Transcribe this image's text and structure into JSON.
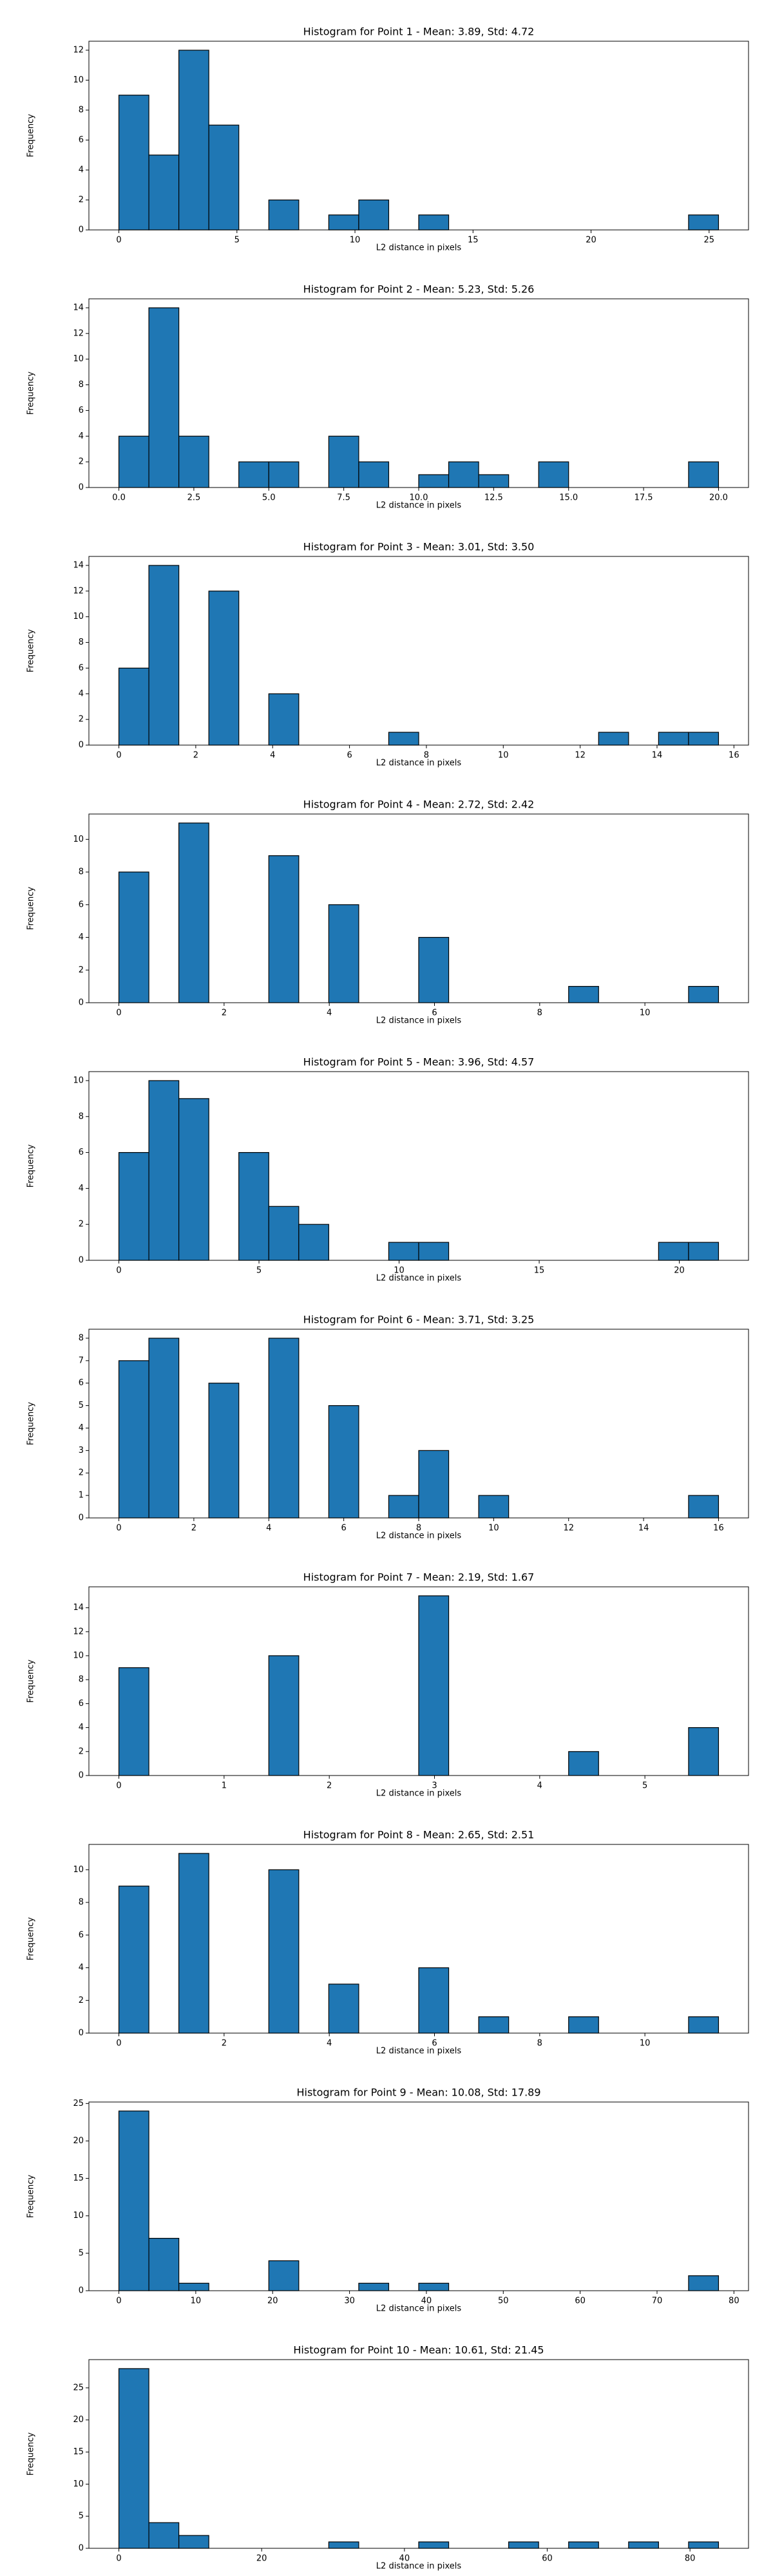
{
  "chart_data": [
    {
      "type": "histogram",
      "title": "Histogram for Point 1 - Mean: 3.89, Std: 4.72",
      "x_label": "L2 distance in pixels",
      "y_label": "Frequency",
      "color": "#1f77b4",
      "bins": [
        0,
        1.27,
        2.54,
        3.81,
        5.08,
        6.35,
        7.62,
        8.89,
        10.16,
        11.43,
        12.7,
        13.97,
        15.24,
        16.51,
        17.78,
        19.05,
        20.32,
        21.59,
        22.86,
        24.13,
        25.4
      ],
      "values": [
        9,
        5,
        12,
        7,
        0,
        2,
        0,
        1,
        2,
        0,
        1,
        0,
        0,
        0,
        0,
        0,
        0,
        0,
        0,
        1
      ],
      "xlim": [
        -1.27,
        26.67
      ],
      "ylim": [
        0,
        12.6
      ],
      "xticks": [
        0,
        5,
        10,
        15,
        20,
        25
      ],
      "yticks": [
        0,
        2,
        4,
        6,
        8,
        10,
        12
      ]
    },
    {
      "type": "histogram",
      "title": "Histogram for Point 2 - Mean: 5.23, Std: 5.26",
      "x_label": "L2 distance in pixels",
      "y_label": "Frequency",
      "color": "#1f77b4",
      "bins": [
        0,
        1,
        2,
        3,
        4,
        5,
        6,
        7,
        8,
        9,
        10,
        11,
        12,
        13,
        14,
        15,
        16,
        17,
        18,
        19,
        20
      ],
      "values": [
        4,
        14,
        4,
        0,
        2,
        2,
        0,
        4,
        2,
        0,
        1,
        2,
        1,
        0,
        2,
        0,
        0,
        0,
        0,
        2
      ],
      "xlim": [
        -1,
        21
      ],
      "ylim": [
        0,
        14.7
      ],
      "xticks": [
        {
          "value": 0,
          "label": "0.0"
        },
        2.5,
        {
          "value": 5,
          "label": "5.0"
        },
        7.5,
        {
          "value": 10,
          "label": "10.0"
        },
        12.5,
        {
          "value": 15,
          "label": "15.0"
        },
        17.5,
        {
          "value": 20,
          "label": "20.0"
        }
      ],
      "yticks": [
        0,
        2,
        4,
        6,
        8,
        10,
        12,
        14
      ]
    },
    {
      "type": "histogram",
      "title": "Histogram for Point 3 - Mean: 3.01, Std: 3.50",
      "x_label": "L2 distance in pixels",
      "y_label": "Frequency",
      "color": "#1f77b4",
      "bins": [
        0,
        0.78,
        1.56,
        2.34,
        3.12,
        3.9,
        4.68,
        5.46,
        6.24,
        7.02,
        7.8,
        8.58,
        9.36,
        10.14,
        10.92,
        11.7,
        12.48,
        13.26,
        14.04,
        14.82,
        15.6
      ],
      "values": [
        6,
        14,
        0,
        12,
        0,
        4,
        0,
        0,
        0,
        1,
        0,
        0,
        0,
        0,
        0,
        0,
        1,
        0,
        1,
        1
      ],
      "xlim": [
        -0.78,
        16.38
      ],
      "ylim": [
        0,
        14.7
      ],
      "xticks": [
        0,
        2,
        4,
        6,
        8,
        10,
        12,
        14,
        16
      ],
      "yticks": [
        0,
        2,
        4,
        6,
        8,
        10,
        12,
        14
      ]
    },
    {
      "type": "histogram",
      "title": "Histogram for Point 4 - Mean: 2.72, Std: 2.42",
      "x_label": "L2 distance in pixels",
      "y_label": "Frequency",
      "color": "#1f77b4",
      "bins": [
        0,
        0.57,
        1.14,
        1.71,
        2.28,
        2.85,
        3.42,
        3.99,
        4.56,
        5.13,
        5.7,
        6.27,
        6.84,
        7.41,
        7.98,
        8.55,
        9.12,
        9.69,
        10.26,
        10.83,
        11.4
      ],
      "values": [
        8,
        0,
        11,
        0,
        0,
        9,
        0,
        6,
        0,
        0,
        4,
        0,
        0,
        0,
        0,
        1,
        0,
        0,
        0,
        1
      ],
      "xlim": [
        -0.57,
        11.97
      ],
      "ylim": [
        0,
        11.55
      ],
      "xticks": [
        0,
        2,
        4,
        6,
        8,
        10
      ],
      "yticks": [
        0,
        2,
        4,
        6,
        8,
        10
      ]
    },
    {
      "type": "histogram",
      "title": "Histogram for Point 5 - Mean: 3.96, Std: 4.57",
      "x_label": "L2 distance in pixels",
      "y_label": "Frequency",
      "color": "#1f77b4",
      "bins": [
        0,
        1.07,
        2.14,
        3.21,
        4.28,
        5.35,
        6.42,
        7.49,
        8.56,
        9.63,
        10.7,
        11.77,
        12.84,
        13.91,
        14.98,
        16.05,
        17.12,
        18.19,
        19.26,
        20.33,
        21.4
      ],
      "values": [
        6,
        10,
        9,
        0,
        6,
        3,
        2,
        0,
        0,
        1,
        1,
        0,
        0,
        0,
        0,
        0,
        0,
        0,
        1,
        1
      ],
      "xlim": [
        -1.07,
        22.47
      ],
      "ylim": [
        0,
        10.5
      ],
      "xticks": [
        0,
        5,
        10,
        15,
        20
      ],
      "yticks": [
        0,
        2,
        4,
        6,
        8,
        10
      ]
    },
    {
      "type": "histogram",
      "title": "Histogram for Point 6 - Mean: 3.71, Std: 3.25",
      "x_label": "L2 distance in pixels",
      "y_label": "Frequency",
      "color": "#1f77b4",
      "bins": [
        0,
        0.8,
        1.6,
        2.4,
        3.2,
        4,
        4.8,
        5.6,
        6.4,
        7.2,
        8,
        8.8,
        9.6,
        10.4,
        11.2,
        12,
        12.8,
        13.6,
        14.4,
        15.2,
        16
      ],
      "values": [
        7,
        8,
        0,
        6,
        0,
        8,
        0,
        5,
        0,
        1,
        3,
        0,
        1,
        0,
        0,
        0,
        0,
        0,
        0,
        1
      ],
      "xlim": [
        -0.8,
        16.8
      ],
      "ylim": [
        0,
        8.4
      ],
      "xticks": [
        0,
        2,
        4,
        6,
        8,
        10,
        12,
        14,
        16
      ],
      "yticks": [
        0,
        1,
        2,
        3,
        4,
        5,
        6,
        7,
        8
      ]
    },
    {
      "type": "histogram",
      "title": "Histogram for Point 7 - Mean: 2.19, Std: 1.67",
      "x_label": "L2 distance in pixels",
      "y_label": "Frequency",
      "color": "#1f77b4",
      "bins": [
        0,
        0.285,
        0.57,
        0.855,
        1.14,
        1.425,
        1.71,
        1.995,
        2.28,
        2.565,
        2.85,
        3.135,
        3.42,
        3.705,
        3.99,
        4.275,
        4.56,
        4.845,
        5.13,
        5.415,
        5.7
      ],
      "values": [
        9,
        0,
        0,
        0,
        0,
        10,
        0,
        0,
        0,
        0,
        15,
        0,
        0,
        0,
        0,
        2,
        0,
        0,
        0,
        4
      ],
      "xlim": [
        -0.285,
        5.985
      ],
      "ylim": [
        0,
        15.75
      ],
      "xticks": [
        0,
        1,
        2,
        3,
        4,
        5
      ],
      "yticks": [
        0,
        2,
        4,
        6,
        8,
        10,
        12,
        14
      ]
    },
    {
      "type": "histogram",
      "title": "Histogram for Point 8 - Mean: 2.65, Std: 2.51",
      "x_label": "L2 distance in pixels",
      "y_label": "Frequency",
      "color": "#1f77b4",
      "bins": [
        0,
        0.57,
        1.14,
        1.71,
        2.28,
        2.85,
        3.42,
        3.99,
        4.56,
        5.13,
        5.7,
        6.27,
        6.84,
        7.41,
        7.98,
        8.55,
        9.12,
        9.69,
        10.26,
        10.83,
        11.4
      ],
      "values": [
        9,
        0,
        11,
        0,
        0,
        10,
        0,
        3,
        0,
        0,
        4,
        0,
        1,
        0,
        0,
        1,
        0,
        0,
        0,
        1
      ],
      "xlim": [
        -0.57,
        11.97
      ],
      "ylim": [
        0,
        11.55
      ],
      "xticks": [
        0,
        2,
        4,
        6,
        8,
        10
      ],
      "yticks": [
        0,
        2,
        4,
        6,
        8,
        10
      ]
    },
    {
      "type": "histogram",
      "title": "Histogram for Point 9 - Mean: 10.08, Std: 17.89",
      "x_label": "L2 distance in pixels",
      "y_label": "Frequency",
      "color": "#1f77b4",
      "bins": [
        0,
        3.9,
        7.8,
        11.7,
        15.6,
        19.5,
        23.4,
        27.3,
        31.2,
        35.1,
        39,
        42.9,
        46.8,
        50.7,
        54.6,
        58.5,
        62.4,
        66.3,
        70.2,
        74.1,
        78
      ],
      "values": [
        24,
        7,
        1,
        0,
        0,
        4,
        0,
        0,
        1,
        0,
        1,
        0,
        0,
        0,
        0,
        0,
        0,
        0,
        0,
        2
      ],
      "xlim": [
        -3.9,
        81.9
      ],
      "ylim": [
        0,
        25.2
      ],
      "xticks": [
        0,
        10,
        20,
        30,
        40,
        50,
        60,
        70,
        80
      ],
      "yticks": [
        0,
        5,
        10,
        15,
        20,
        25
      ]
    },
    {
      "type": "histogram",
      "title": "Histogram for Point 10 - Mean: 10.61, Std: 21.45",
      "x_label": "L2 distance in pixels",
      "y_label": "Frequency",
      "color": "#1f77b4",
      "bins": [
        0,
        4.2,
        8.4,
        12.6,
        16.8,
        21,
        25.2,
        29.4,
        33.6,
        37.8,
        42,
        46.2,
        50.4,
        54.6,
        58.8,
        63,
        67.2,
        71.4,
        75.6,
        79.8,
        84
      ],
      "values": [
        28,
        4,
        2,
        0,
        0,
        0,
        0,
        1,
        0,
        0,
        1,
        0,
        0,
        1,
        0,
        1,
        0,
        1,
        0,
        1
      ],
      "xlim": [
        -4.2,
        88.2
      ],
      "ylim": [
        0,
        29.4
      ],
      "xticks": [
        0,
        20,
        40,
        60,
        80
      ],
      "yticks": [
        0,
        5,
        10,
        15,
        20,
        25
      ]
    }
  ]
}
